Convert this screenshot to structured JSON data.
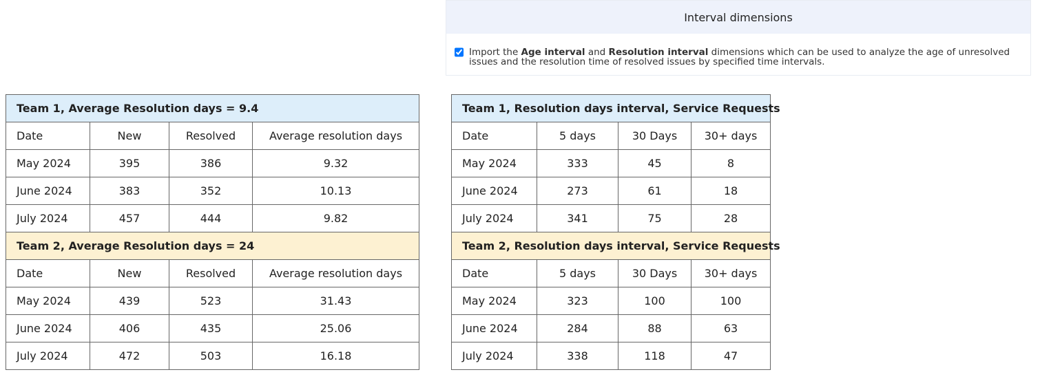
{
  "panel": {
    "title": "Interval dimensions",
    "checkbox": {
      "checked": true,
      "text_parts": [
        "Import the ",
        "Age interval",
        " and ",
        "Resolution interval",
        " dimensions which can be used to analyze the age of unresolved issues and the resolution time of resolved issues by specified time intervals."
      ]
    }
  },
  "left_table": {
    "sections": [
      {
        "title": "Team 1, Average Resolution days = 9.4",
        "header": [
          "Date",
          "New",
          "Resolved",
          "Average resolution days"
        ],
        "rows": [
          [
            "May 2024",
            "395",
            "386",
            "9.32"
          ],
          [
            "June 2024",
            "383",
            "352",
            "10.13"
          ],
          [
            "July 2024",
            "457",
            "444",
            "9.82"
          ]
        ]
      },
      {
        "title": "Team 2, Average Resolution days = 24",
        "header": [
          "Date",
          "New",
          "Resolved",
          "Average resolution days"
        ],
        "rows": [
          [
            "May 2024",
            "439",
            "523",
            "31.43"
          ],
          [
            "June 2024",
            "406",
            "435",
            "25.06"
          ],
          [
            "July 2024",
            "472",
            "503",
            "16.18"
          ]
        ]
      }
    ]
  },
  "right_table": {
    "sections": [
      {
        "title": "Team 1, Resolution days interval, Service Requests",
        "header": [
          "Date",
          "5 days",
          "30 Days",
          "30+ days"
        ],
        "rows": [
          [
            "May 2024",
            "333",
            "45",
            "8"
          ],
          [
            "June 2024",
            "273",
            "61",
            "18"
          ],
          [
            "July 2024",
            "341",
            "75",
            "28"
          ]
        ]
      },
      {
        "title": "Team 2, Resolution days interval, Service Requests",
        "header": [
          "Date",
          "5 days",
          "30 Days",
          "30+ days"
        ],
        "rows": [
          [
            "May 2024",
            "323",
            "100",
            "100"
          ],
          [
            "June 2024",
            "284",
            "88",
            "63"
          ],
          [
            "July 2024",
            "338",
            "118",
            "47"
          ]
        ]
      }
    ]
  }
}
